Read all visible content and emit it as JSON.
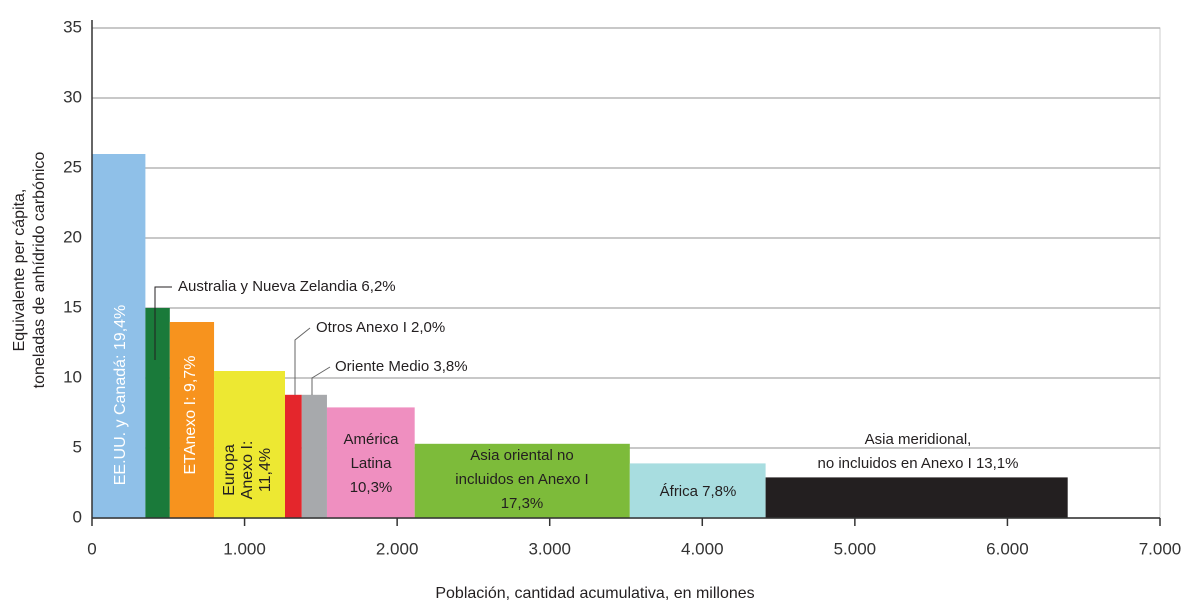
{
  "chart_data": {
    "type": "variable-width-bar",
    "xlabel": "Población, cantidad acumulativa, en millones",
    "ylabel": [
      "Equivalente per cápita,",
      "toneladas de anhídrido carbónico"
    ],
    "xlim": [
      0,
      7000
    ],
    "ylim": [
      0,
      35
    ],
    "xticks": [
      0,
      {
        "value": 1000,
        "label": "1.000"
      },
      {
        "value": 2000,
        "label": "2.000"
      },
      {
        "value": 3000,
        "label": "3.000"
      },
      {
        "value": 4000,
        "label": "4.000"
      },
      {
        "value": 5000,
        "label": "5.000"
      },
      {
        "value": 6000,
        "label": "6.000"
      },
      {
        "value": 7000,
        "label": "7.000"
      }
    ],
    "yticks": [
      0,
      5,
      10,
      15,
      20,
      25,
      30,
      35
    ],
    "grid": true,
    "bars": [
      {
        "label": [
          "EE.UU. y Canadá: 19,4%"
        ],
        "x0": 0,
        "x1": 350,
        "value": 26,
        "color": "#8fc0e8"
      },
      {
        "label": [
          "Australia y Nueva Zelandia   6,2%"
        ],
        "x0": 350,
        "x1": 510,
        "value": 15,
        "color": "#1a7a3a"
      },
      {
        "label": [
          "ETAnexo I: 9,7%"
        ],
        "x0": 510,
        "x1": 800,
        "value": 14,
        "color": "#f7931e"
      },
      {
        "label": [
          "Europa",
          "Anexo I:",
          "11,4%"
        ],
        "x0": 800,
        "x1": 1265,
        "value": 10.5,
        "color": "#ede832"
      },
      {
        "label": [
          "Otros Anexo I  2,0%"
        ],
        "x0": 1265,
        "x1": 1375,
        "value": 8.8,
        "color": "#e4262c"
      },
      {
        "label": [
          "Oriente Medio 3,8%"
        ],
        "x0": 1375,
        "x1": 1540,
        "value": 8.8,
        "color": "#a7a9ac"
      },
      {
        "label": [
          "América",
          "Latina",
          "10,3%"
        ],
        "x0": 1540,
        "x1": 2115,
        "value": 7.9,
        "color": "#ef8fc0"
      },
      {
        "label": [
          "Asia oriental no",
          "incluidos en Anexo I",
          "17,3%"
        ],
        "x0": 2115,
        "x1": 3525,
        "value": 5.3,
        "color": "#7dbb3a"
      },
      {
        "label": [
          "África  7,8%"
        ],
        "x0": 3525,
        "x1": 4415,
        "value": 3.9,
        "color": "#a8dde0"
      },
      {
        "label": [
          "Asia meridional,",
          "no incluidos en Anexo I  13,1%"
        ],
        "x0": 4415,
        "x1": 6395,
        "value": 2.9,
        "color": "#231f20"
      }
    ]
  }
}
